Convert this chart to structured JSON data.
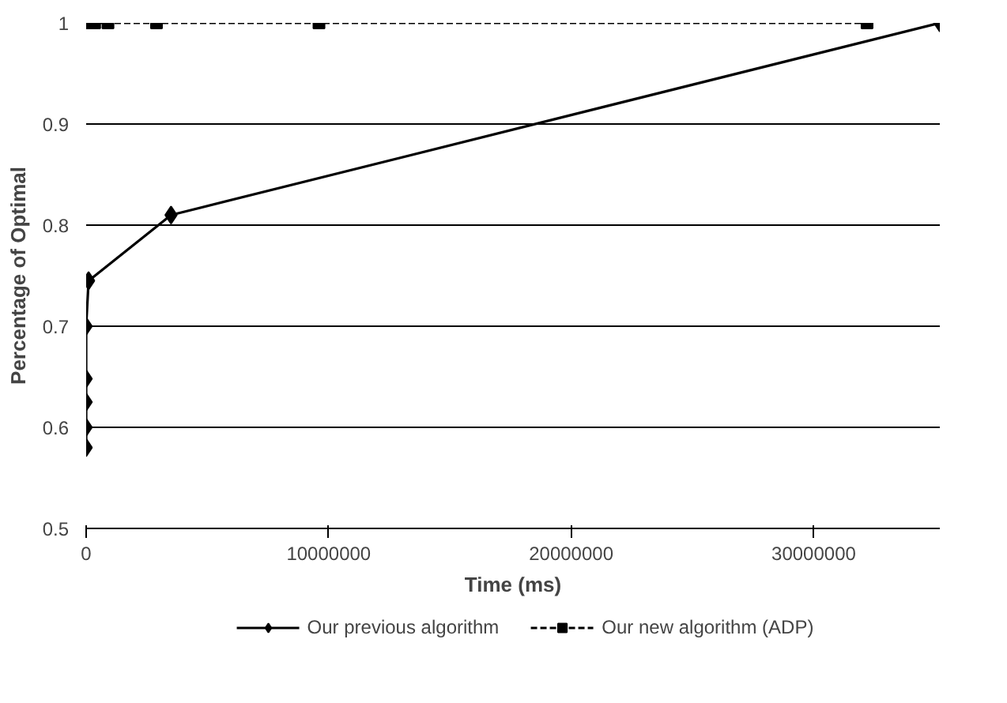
{
  "chart_data": {
    "type": "line",
    "xlabel": "Time (ms)",
    "ylabel": "Percentage of Optimal",
    "xlim": [
      0,
      35200000
    ],
    "xticks": [
      0,
      10000000,
      20000000,
      30000000
    ],
    "ylim": [
      0.5,
      1
    ],
    "yticks": [
      0.5,
      0.6,
      0.7,
      0.8,
      0.9,
      1
    ],
    "grid": "y",
    "legend": "bottom",
    "series": [
      {
        "name": "Our previous algorithm",
        "color": "#000000",
        "marker": "diamond",
        "line_style": "solid",
        "x": [
          0,
          0,
          0,
          0,
          0,
          100000,
          3500000,
          35200000
        ],
        "values": [
          0.58,
          0.6,
          0.625,
          0.648,
          0.7,
          0.745,
          0.81,
          1
        ]
      },
      {
        "name": "Our new algorithm (ADP)",
        "color": "#000000",
        "marker": "square",
        "line_style": "dashed",
        "x": [
          0,
          350000,
          900000,
          2900000,
          9600000,
          32200000
        ],
        "values": [
          1,
          1,
          1,
          1,
          1,
          1
        ]
      }
    ]
  }
}
